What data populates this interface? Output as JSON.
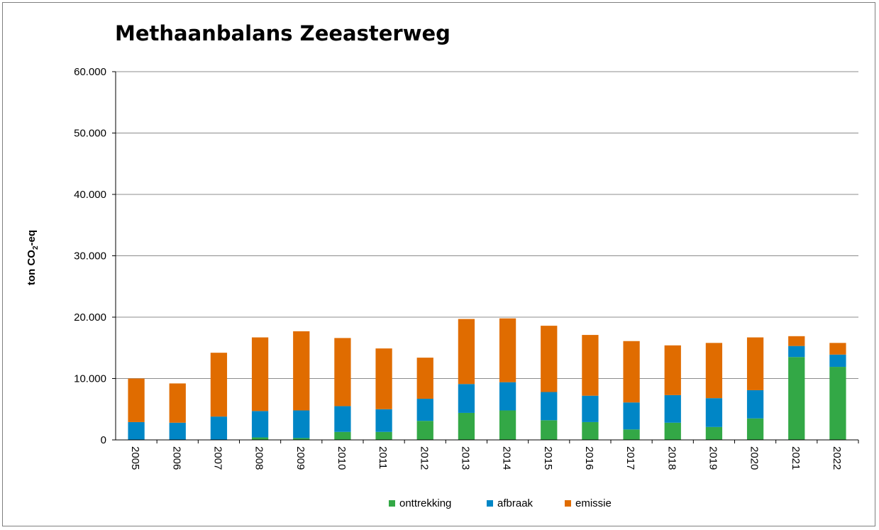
{
  "chart_data": {
    "type": "bar",
    "stacked": true,
    "title": "Methaanbalans Zeeasterweg",
    "ylabel_main": "ton CO",
    "ylabel_sub": "2",
    "ylabel_suffix": "-eq",
    "ylim": [
      0,
      60000
    ],
    "yticks": [
      "0",
      "10.000",
      "20.000",
      "30.000",
      "40.000",
      "50.000",
      "60.000"
    ],
    "grid": true,
    "legend_position": "bottom",
    "categories": [
      "2005",
      "2006",
      "2007",
      "2008",
      "2009",
      "2010",
      "2011",
      "2012",
      "2013",
      "2014",
      "2015",
      "2016",
      "2017",
      "2018",
      "2019",
      "2020",
      "2021",
      "2022"
    ],
    "series": [
      {
        "name": "onttrekking",
        "color": "#33a846",
        "values": [
          0,
          0,
          0,
          400,
          300,
          1300,
          1300,
          3100,
          4400,
          4800,
          3200,
          2900,
          1700,
          2800,
          2100,
          3500,
          13500,
          11900
        ]
      },
      {
        "name": "afbraak",
        "color": "#0086c6",
        "values": [
          2900,
          2800,
          3800,
          4300,
          4500,
          4200,
          3700,
          3600,
          4700,
          4600,
          4600,
          4300,
          4400,
          4500,
          4700,
          4600,
          1800,
          2000
        ]
      },
      {
        "name": "emissie",
        "color": "#e06c00",
        "values": [
          7100,
          6400,
          10400,
          12000,
          12900,
          11100,
          9900,
          6700,
          10600,
          10400,
          10800,
          9900,
          10000,
          8100,
          9000,
          8600,
          1600,
          1900
        ]
      }
    ]
  }
}
